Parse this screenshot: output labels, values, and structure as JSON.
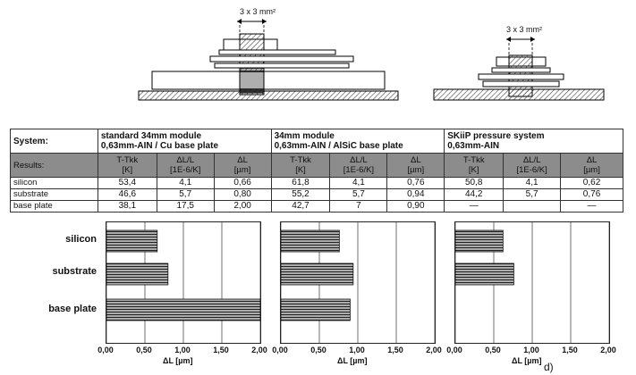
{
  "top_dims": {
    "left": "3 x 3 mm²",
    "right": "3 x 3 mm²"
  },
  "table": {
    "system_label": "System:",
    "results_label": "Results:",
    "systems": [
      {
        "line1": "standard 34mm module",
        "line2": "0,63mm-AIN / Cu base plate"
      },
      {
        "line1": "34mm module",
        "line2": "0,63mm-AIN / AlSiC base plate"
      },
      {
        "line1": "SKiiP pressure system",
        "line2": "0,63mm-AIN"
      }
    ],
    "col_headers": [
      {
        "l1": "T-Tkk",
        "l2": "[K]"
      },
      {
        "l1": "ΔL/L",
        "l2": "[1E-6/K]"
      },
      {
        "l1": "ΔL",
        "l2": "[µm]"
      }
    ],
    "rows": [
      {
        "label": "silicon",
        "values": [
          "53,4",
          "4,1",
          "0,66",
          "61,8",
          "4,1",
          "0,76",
          "50,8",
          "4,1",
          "0,62"
        ]
      },
      {
        "label": "substrate",
        "values": [
          "46,6",
          "5,7",
          "0,80",
          "55,2",
          "5,7",
          "0,94",
          "44,2",
          "5,7",
          "0,76"
        ]
      },
      {
        "label": "base plate",
        "values": [
          "38,1",
          "17,5",
          "2,00",
          "42,7",
          "7",
          "0,90",
          "—",
          "",
          "—"
        ]
      }
    ]
  },
  "chart_data": [
    {
      "type": "bar",
      "orientation": "horizontal",
      "categories": [
        "silicon",
        "substrate",
        "base plate"
      ],
      "values": [
        0.66,
        0.8,
        2.0
      ],
      "xlim": [
        0,
        2
      ],
      "xticks": [
        "0,00",
        "0,50",
        "1,00",
        "1,50",
        "2,00"
      ],
      "xlabel": "ΔL [µm]",
      "grid": true
    },
    {
      "type": "bar",
      "orientation": "horizontal",
      "categories": [
        "silicon",
        "substrate",
        "base plate"
      ],
      "values": [
        0.76,
        0.94,
        0.9
      ],
      "xlim": [
        0,
        2
      ],
      "xticks": [
        "0,00",
        "0,50",
        "1,00",
        "1,50",
        "2,00"
      ],
      "xlabel": "ΔL [µm]",
      "grid": true
    },
    {
      "type": "bar",
      "orientation": "horizontal",
      "categories": [
        "silicon",
        "substrate",
        "base plate"
      ],
      "values": [
        0.62,
        0.76,
        null
      ],
      "xlim": [
        0,
        2
      ],
      "xticks": [
        "0,00",
        "0,50",
        "1,00",
        "1,50",
        "2,00"
      ],
      "xlabel": "ΔL [µm]",
      "grid": true
    }
  ],
  "chart_category_labels": [
    "silicon",
    "substrate",
    "base plate"
  ],
  "figure_label": "d)"
}
